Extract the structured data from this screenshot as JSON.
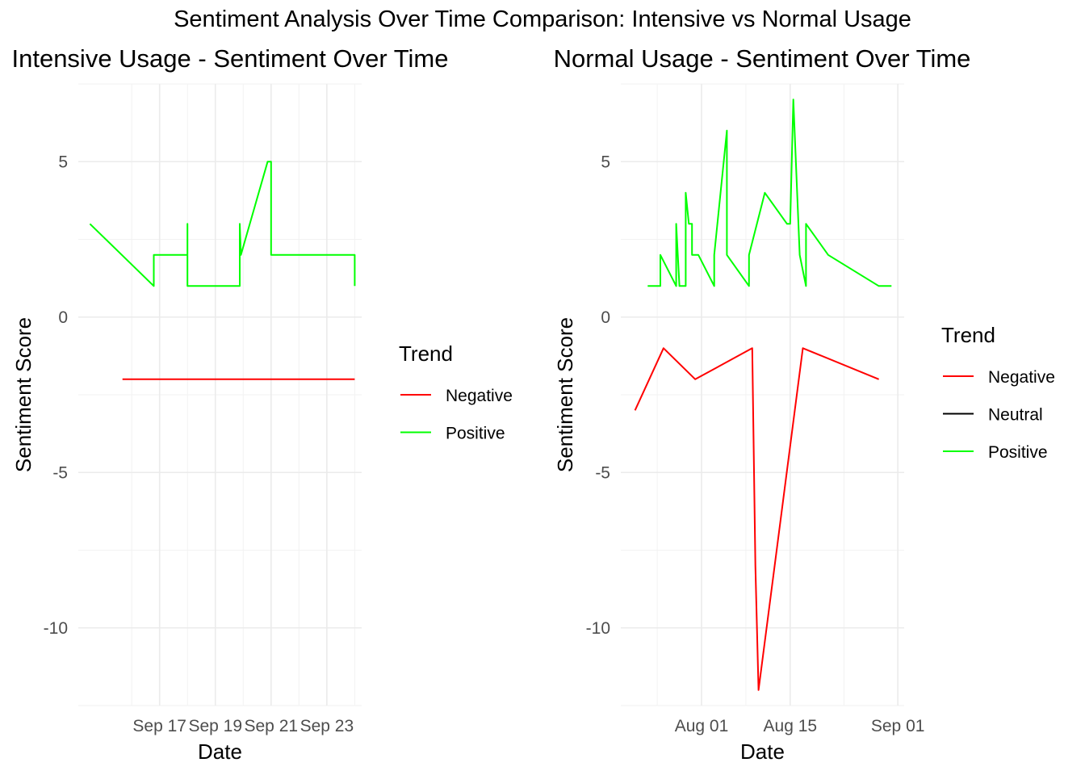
{
  "main_title": "Sentiment Analysis Over Time Comparison: Intensive vs Normal Usage",
  "colors": {
    "Negative": "#ff0000",
    "Neutral": "#000000",
    "Positive": "#00ff00"
  },
  "chart_data": [
    {
      "type": "line",
      "title": "Intensive Usage - Sentiment Over Time",
      "xlabel": "Date",
      "ylabel": "Sentiment Score",
      "xlim": [
        "2024-09-14T02:00",
        "2024-09-24T06:00"
      ],
      "ylim": [
        -12.5,
        7.5
      ],
      "x_ticks": [
        {
          "x": "2024-09-17",
          "label": "Sep 17"
        },
        {
          "x": "2024-09-19",
          "label": "Sep 19"
        },
        {
          "x": "2024-09-21",
          "label": "Sep 21"
        },
        {
          "x": "2024-09-23",
          "label": "Sep 23"
        }
      ],
      "y_ticks": [
        {
          "y": 5,
          "label": "5"
        },
        {
          "y": 0,
          "label": "0"
        },
        {
          "y": -5,
          "label": "-5"
        },
        {
          "y": -10,
          "label": "-10"
        }
      ],
      "legend_title": "Trend",
      "legend": [
        "Negative",
        "Positive"
      ],
      "series": [
        {
          "name": "Negative",
          "x": [
            "2024-09-15T16:00",
            "2024-09-24T00:00"
          ],
          "y": [
            -2,
            -2
          ]
        },
        {
          "name": "Positive",
          "x": [
            "2024-09-14T12:00",
            "2024-09-16T19:00",
            "2024-09-16T19:00",
            "2024-09-18T00:00",
            "2024-09-18T00:00",
            "2024-09-18T00:00",
            "2024-09-19T21:00",
            "2024-09-19T21:00",
            "2024-09-19T21:00",
            "2024-09-19T22:00",
            "2024-09-19T22:00",
            "2024-09-20T21:00",
            "2024-09-21T00:00",
            "2024-09-21T00:00",
            "2024-09-24T00:00",
            "2024-09-24T00:00"
          ],
          "y": [
            3,
            1,
            2,
            2,
            3,
            1,
            1,
            2,
            3,
            2,
            2,
            5,
            5,
            2,
            2,
            1
          ]
        }
      ]
    },
    {
      "type": "line",
      "title": "Normal Usage - Sentiment Over Time",
      "xlabel": "Date",
      "ylabel": "Sentiment Score",
      "xlim": [
        "2024-07-19T06:00",
        "2024-09-02T00:00"
      ],
      "ylim": [
        -12.5,
        7.5
      ],
      "x_ticks": [
        {
          "x": "2024-08-01",
          "label": "Aug 01"
        },
        {
          "x": "2024-08-15",
          "label": "Aug 15"
        },
        {
          "x": "2024-09-01",
          "label": "Sep 01"
        }
      ],
      "y_ticks": [
        {
          "y": 5,
          "label": "5"
        },
        {
          "y": 0,
          "label": "0"
        },
        {
          "y": -5,
          "label": "-5"
        },
        {
          "y": -10,
          "label": "-10"
        }
      ],
      "legend_title": "Trend",
      "legend": [
        "Negative",
        "Neutral",
        "Positive"
      ],
      "series": [
        {
          "name": "Negative",
          "x": [
            "2024-07-21T12:00",
            "2024-07-26T00:00",
            "2024-07-31T00:00",
            "2024-08-09T00:00",
            "2024-08-09T12:00",
            "2024-08-10T00:00",
            "2024-08-17T00:00",
            "2024-08-29T00:00"
          ],
          "y": [
            -3,
            -1,
            -2,
            -1,
            -8,
            -12,
            -1,
            -2
          ]
        },
        {
          "name": "Neutral",
          "x": [],
          "y": []
        },
        {
          "name": "Positive",
          "x": [
            "2024-07-23T12:00",
            "2024-07-25T12:00",
            "2024-07-25T12:00",
            "2024-07-28T00:00",
            "2024-07-28T00:00",
            "2024-07-28T12:00",
            "2024-07-28T12:00",
            "2024-07-29T12:00",
            "2024-07-29T12:00",
            "2024-07-30T00:00",
            "2024-07-30T12:00",
            "2024-07-30T12:00",
            "2024-07-31T12:00",
            "2024-08-03T00:00",
            "2024-08-03T00:00",
            "2024-08-05T00:00",
            "2024-08-05T00:00",
            "2024-08-08T12:00",
            "2024-08-08T12:00",
            "2024-08-11T00:00",
            "2024-08-14T12:00",
            "2024-08-15T00:00",
            "2024-08-15T12:00",
            "2024-08-16T12:00",
            "2024-08-17T12:00",
            "2024-08-17T12:00",
            "2024-08-21T00:00",
            "2024-08-29T00:00",
            "2024-08-31T00:00"
          ],
          "y": [
            1,
            1,
            2,
            1,
            3,
            1,
            1,
            1,
            4,
            3,
            3,
            2,
            2,
            1,
            2,
            6,
            2,
            1,
            2,
            4,
            3,
            3,
            7,
            2,
            1,
            3,
            2,
            1,
            1
          ]
        }
      ]
    }
  ]
}
